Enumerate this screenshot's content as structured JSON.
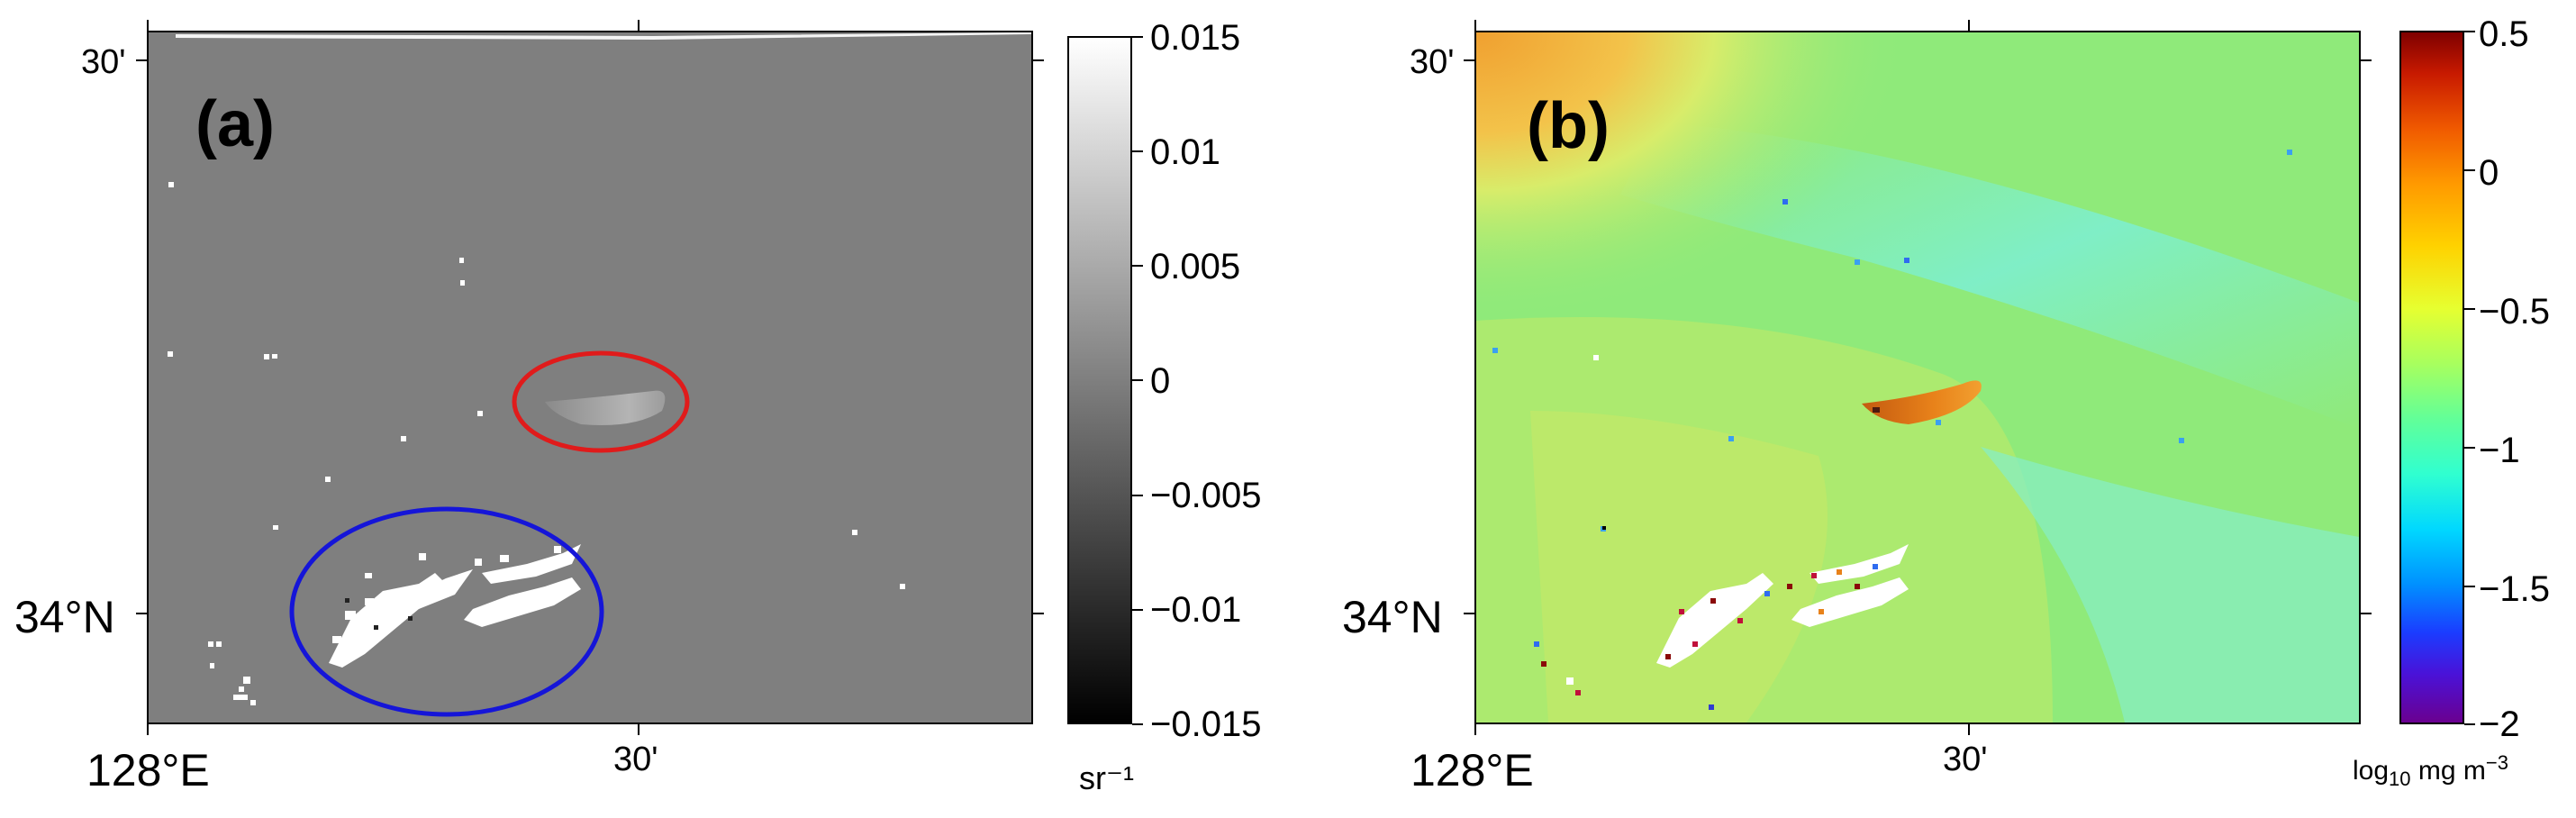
{
  "panels": [
    {
      "id": "a",
      "letter": "(a)",
      "lat_ticks": [
        "30'",
        "34°N"
      ],
      "lon_ticks": [
        "128°E",
        "30'"
      ],
      "colorbar": {
        "ticks": [
          "0.015",
          "0.01",
          "0.005",
          "0",
          "−0.005",
          "−0.01",
          "−0.015"
        ],
        "unit": "sr⁻¹",
        "colormap": "gray",
        "range": [
          -0.015,
          0.015
        ]
      },
      "annotations": [
        "red-ellipse",
        "blue-ellipse"
      ]
    },
    {
      "id": "b",
      "letter": "(b)",
      "lat_ticks": [
        "30'",
        "34°N"
      ],
      "lon_ticks": [
        "128°E",
        "30'"
      ],
      "colorbar": {
        "ticks": [
          "0.5",
          "0",
          "−0.5",
          "−1",
          "−1.5",
          "−2"
        ],
        "unit_main": "log",
        "unit_sub": "10",
        "unit_rest": " mg m",
        "unit_sup": "−3",
        "colormap": "jet",
        "range": [
          -2,
          0.5
        ]
      }
    }
  ],
  "colors": {
    "map_a_background": "#7f7f7f",
    "red_ellipse": "#e01b1b",
    "blue_ellipse": "#1515d8",
    "map_b_green": "#8fea7a",
    "map_b_orange": "#e8821a"
  }
}
